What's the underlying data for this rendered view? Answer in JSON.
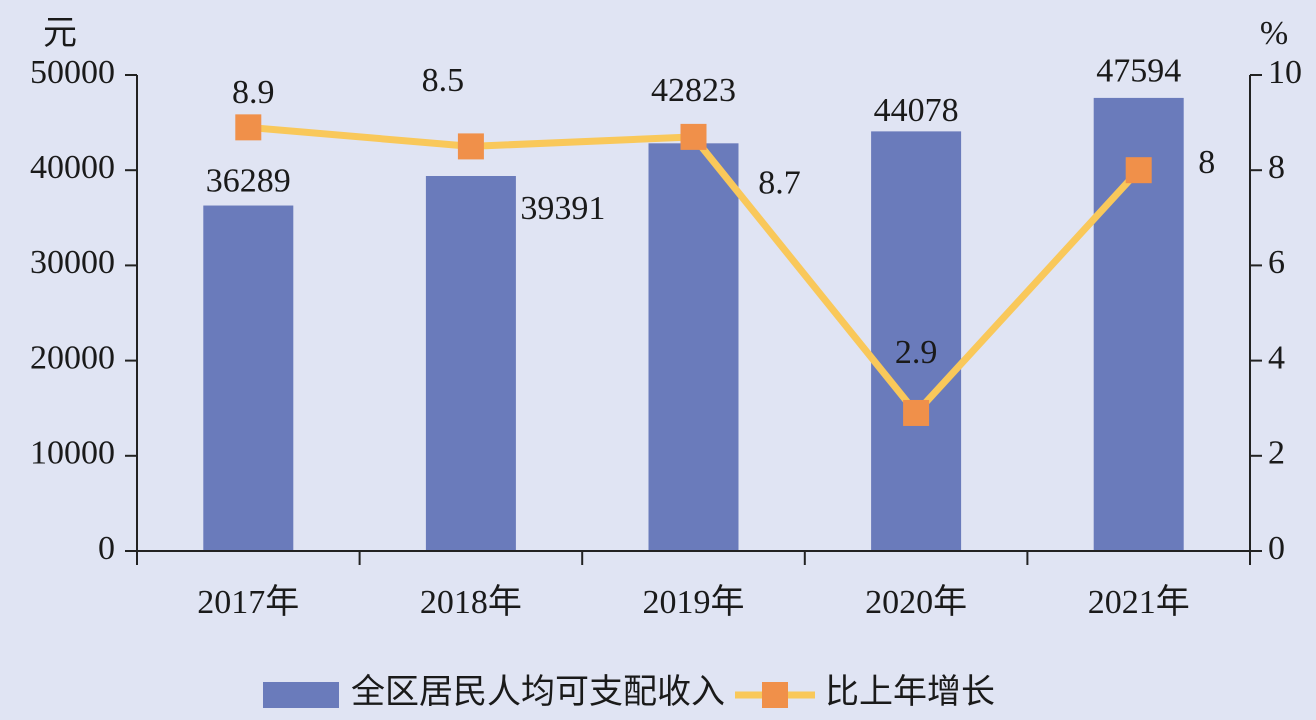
{
  "chart_data": {
    "type": "bar-line",
    "y_label": "元",
    "y2_label": "%",
    "categories": [
      "2017年",
      "2018年",
      "2019年",
      "2020年",
      "2021年"
    ],
    "series": [
      {
        "name": "全区居民人均可支配收入",
        "type": "bar",
        "color": "#6a7bbb",
        "values": [
          36289,
          39391,
          42823,
          44078,
          47594
        ]
      },
      {
        "name": "比上年增长",
        "type": "line",
        "axis": "y2",
        "color": "#f9c85a",
        "marker_color": "#f0904a",
        "values": [
          8.9,
          8.5,
          8.7,
          2.9,
          8
        ]
      }
    ],
    "ylim": [
      0,
      50000
    ],
    "yticks": [
      0,
      10000,
      20000,
      30000,
      40000,
      50000
    ],
    "y2lim": [
      0,
      10
    ],
    "y2ticks": [
      0,
      2,
      4,
      6,
      8,
      10
    ],
    "legend": "bottom"
  }
}
